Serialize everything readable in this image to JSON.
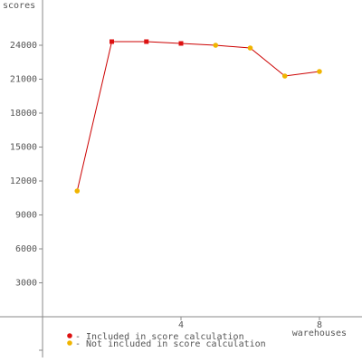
{
  "chart_data": {
    "type": "line",
    "ylabel": "scores",
    "xlabel": "warehouses",
    "x": [
      1,
      2,
      3,
      4,
      5,
      6,
      7,
      8
    ],
    "values": [
      11120,
      24320,
      24320,
      24160,
      24000,
      23760,
      21280,
      21680
    ],
    "included": [
      false,
      true,
      true,
      true,
      false,
      false,
      false,
      false
    ],
    "line_color": "#cc0000",
    "legend": [
      {
        "name": "Included in score calculation",
        "color": "#dd1111"
      },
      {
        "name": "Not included in score calculation",
        "color": "#f0b400"
      }
    ],
    "xlim": [
      -1.23,
      9.23
    ],
    "ylim": [
      -4000,
      28000
    ],
    "xticks": [
      4,
      8
    ],
    "yticks": [
      3000,
      6000,
      9000,
      12000,
      15000,
      18000,
      21000,
      24000
    ]
  }
}
